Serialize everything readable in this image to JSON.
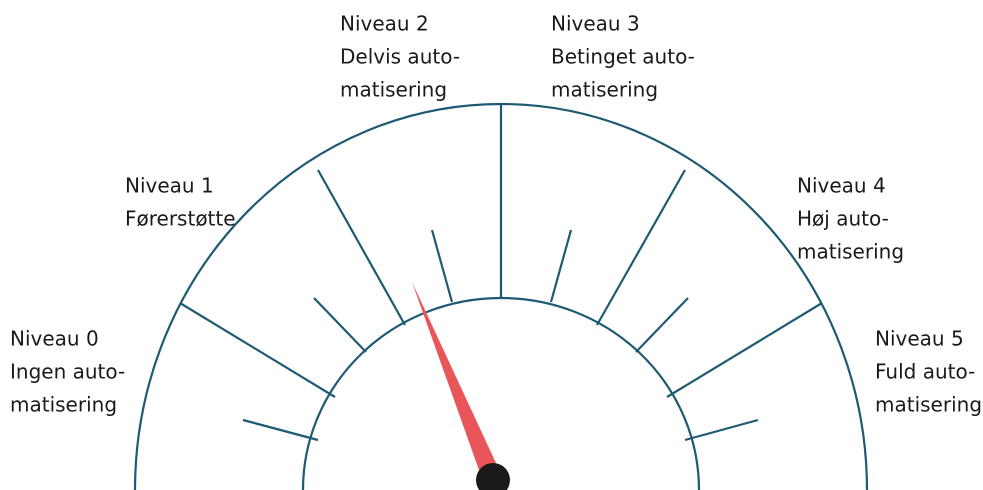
{
  "levels": [
    {
      "lines": [
        "Niveau 0",
        "Ingen auto-",
        "matisering"
      ]
    },
    {
      "lines": [
        "Niveau 1",
        "Førerstøtte"
      ]
    },
    {
      "lines": [
        "Niveau 2",
        "Delvis auto-",
        "matisering"
      ]
    },
    {
      "lines": [
        "Niveau 3",
        "Betinget auto-",
        "matisering"
      ]
    },
    {
      "lines": [
        "Niveau 4",
        "Høj auto-",
        "matisering"
      ]
    },
    {
      "lines": [
        "Niveau 5",
        "Fuld auto-",
        "matisering"
      ]
    }
  ]
}
